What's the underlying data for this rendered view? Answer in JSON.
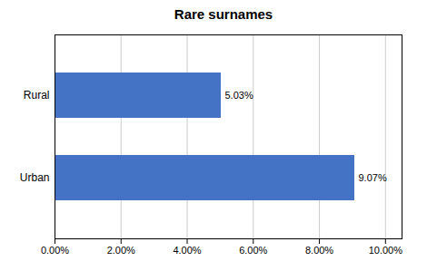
{
  "chart_data": {
    "type": "bar",
    "title": "Rare surnames",
    "orientation": "horizontal",
    "categories": [
      "Urban",
      "Rural"
    ],
    "values": [
      9.07,
      5.03
    ],
    "value_labels": [
      "9.07%",
      "5.03%"
    ],
    "data_labels": true,
    "color": "#4472C4",
    "xlim": [
      0,
      10.5
    ],
    "xticks": [
      {
        "value": 0,
        "label": "0.00%"
      },
      {
        "value": 2,
        "label": "2.00%"
      },
      {
        "value": 4,
        "label": "4.00%"
      },
      {
        "value": 6,
        "label": "6.00%"
      },
      {
        "value": 8,
        "label": "8.00%"
      },
      {
        "value": 10,
        "label": "10.00%"
      }
    ],
    "grid": true
  }
}
